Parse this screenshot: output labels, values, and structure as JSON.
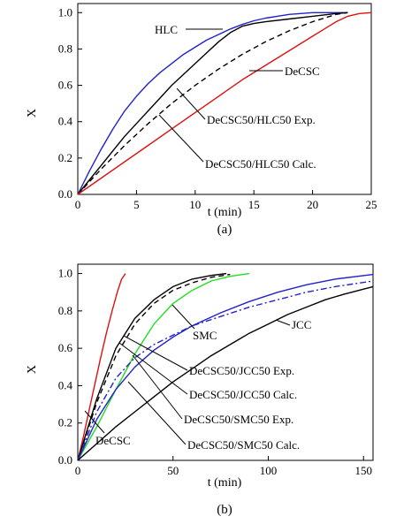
{
  "chart_data": [
    {
      "type": "line",
      "panel_label": "(a)",
      "xlabel": "t (min)",
      "ylabel": "X",
      "xlim": [
        0,
        25
      ],
      "ylim": [
        0,
        1.05
      ],
      "xticks": [
        0,
        5,
        10,
        15,
        20,
        25
      ],
      "yticks": [
        0.0,
        0.2,
        0.4,
        0.6,
        0.8,
        1.0
      ],
      "tick_labels_x": [
        "0",
        "5",
        "10",
        "15",
        "20",
        "25"
      ],
      "tick_labels_y": [
        "0.0",
        "0.2",
        "0.4",
        "0.6",
        "0.8",
        "1.0"
      ],
      "grid": false,
      "series": [
        {
          "name": "HLC",
          "color": "#2222cc",
          "dash": "solid",
          "x": [
            0,
            1,
            2,
            3,
            4,
            5,
            6,
            7,
            8,
            9,
            10,
            11,
            12,
            13,
            14,
            15,
            16,
            17,
            18,
            19,
            20,
            21,
            22,
            23
          ],
          "y": [
            0,
            0.13,
            0.25,
            0.36,
            0.46,
            0.54,
            0.61,
            0.67,
            0.72,
            0.77,
            0.81,
            0.85,
            0.88,
            0.91,
            0.935,
            0.955,
            0.97,
            0.98,
            0.99,
            0.995,
            1.0,
            1.0,
            1.0,
            1.0
          ]
        },
        {
          "name": "DeCSC50/HLC50 Exp.",
          "color": "#000000",
          "dash": "solid",
          "x": [
            0,
            1,
            2,
            3,
            4,
            5,
            6,
            7,
            8,
            9,
            10,
            11,
            12,
            13,
            14,
            15,
            16,
            18,
            20,
            22,
            23
          ],
          "y": [
            0,
            0.08,
            0.16,
            0.24,
            0.32,
            0.39,
            0.46,
            0.53,
            0.6,
            0.66,
            0.72,
            0.78,
            0.84,
            0.89,
            0.925,
            0.94,
            0.95,
            0.965,
            0.98,
            0.995,
            1.0
          ]
        },
        {
          "name": "DeCSC50/HLC50 Calc.",
          "color": "#000000",
          "dash": "dashed",
          "x": [
            0,
            2,
            4,
            6,
            8,
            10,
            12,
            14,
            16,
            18,
            20,
            22,
            23
          ],
          "y": [
            0,
            0.14,
            0.27,
            0.39,
            0.5,
            0.6,
            0.69,
            0.77,
            0.84,
            0.9,
            0.95,
            0.99,
            1.0
          ]
        },
        {
          "name": "DeCSC",
          "color": "#dd1111",
          "dash": "solid",
          "x": [
            0,
            2,
            4,
            6,
            8,
            10,
            12,
            14,
            16,
            18,
            20,
            21,
            22,
            23,
            24,
            25
          ],
          "y": [
            0,
            0.09,
            0.18,
            0.27,
            0.36,
            0.45,
            0.54,
            0.63,
            0.71,
            0.79,
            0.87,
            0.91,
            0.95,
            0.98,
            0.995,
            1.0
          ]
        }
      ],
      "annotations": [
        "HLC",
        "DeCSC",
        "DeCSC50/HLC50 Exp.",
        "DeCSC50/HLC50 Calc."
      ]
    },
    {
      "type": "line",
      "panel_label": "(b)",
      "xlabel": "t (min)",
      "ylabel": "X",
      "xlim": [
        0,
        155
      ],
      "ylim": [
        0,
        1.05
      ],
      "xticks": [
        0,
        50,
        100,
        150
      ],
      "yticks": [
        0.0,
        0.2,
        0.4,
        0.6,
        0.8,
        1.0
      ],
      "tick_labels_x": [
        "0",
        "50",
        "100",
        "150"
      ],
      "tick_labels_y": [
        "0.0",
        "0.2",
        "0.4",
        "0.6",
        "0.8",
        "1.0"
      ],
      "grid": false,
      "series": [
        {
          "name": "DeCSC",
          "color": "#dd1111",
          "dash": "solid",
          "x": [
            0,
            3,
            6,
            9,
            12,
            15,
            18,
            21,
            23,
            25
          ],
          "y": [
            0,
            0.13,
            0.27,
            0.41,
            0.55,
            0.68,
            0.8,
            0.91,
            0.97,
            1.0
          ]
        },
        {
          "name": "DeCSC50/JCC50 Exp.",
          "color": "#000000",
          "dash": "solid",
          "x": [
            0,
            10,
            20,
            30,
            40,
            50,
            60,
            70,
            78
          ],
          "y": [
            0,
            0.33,
            0.6,
            0.76,
            0.86,
            0.93,
            0.97,
            0.99,
            1.0
          ]
        },
        {
          "name": "DeCSC50/JCC50 Calc.",
          "color": "#000000",
          "dash": "dashed",
          "x": [
            0,
            10,
            20,
            30,
            40,
            50,
            60,
            70,
            80
          ],
          "y": [
            0,
            0.31,
            0.56,
            0.73,
            0.84,
            0.91,
            0.95,
            0.98,
            0.995
          ]
        },
        {
          "name": "SMC",
          "color": "#22dd22",
          "dash": "solid",
          "x": [
            0,
            10,
            20,
            30,
            40,
            50,
            60,
            70,
            80,
            90
          ],
          "y": [
            0,
            0.18,
            0.38,
            0.57,
            0.73,
            0.84,
            0.91,
            0.96,
            0.985,
            1.0
          ]
        },
        {
          "name": "DeCSC50/SMC50 Exp.",
          "color": "#2222cc",
          "dash": "dashdot",
          "x": [
            0,
            10,
            20,
            30,
            40,
            50,
            60,
            75,
            90,
            105,
            120,
            135,
            155
          ],
          "y": [
            0,
            0.26,
            0.44,
            0.55,
            0.62,
            0.67,
            0.72,
            0.77,
            0.82,
            0.86,
            0.9,
            0.93,
            0.96
          ]
        },
        {
          "name": "DeCSC50/SMC50 Calc.",
          "color": "#2222cc",
          "dash": "solid",
          "x": [
            0,
            10,
            20,
            30,
            40,
            50,
            60,
            75,
            90,
            105,
            120,
            135,
            155
          ],
          "y": [
            0,
            0.22,
            0.38,
            0.5,
            0.59,
            0.66,
            0.72,
            0.79,
            0.85,
            0.9,
            0.94,
            0.97,
            0.995
          ]
        },
        {
          "name": "JCC",
          "color": "#000000",
          "dash": "solid",
          "x": [
            0,
            10,
            20,
            30,
            40,
            50,
            60,
            70,
            80,
            90,
            100,
            110,
            120,
            130,
            140,
            155
          ],
          "y": [
            0,
            0.09,
            0.18,
            0.26,
            0.34,
            0.42,
            0.49,
            0.56,
            0.62,
            0.68,
            0.73,
            0.78,
            0.82,
            0.86,
            0.89,
            0.93
          ]
        }
      ],
      "annotations": [
        "SMC",
        "JCC",
        "DeCSC50/JCC50 Exp.",
        "DeCSC50/JCC50 Calc.",
        "DeCSC50/SMC50 Exp.",
        "DeCSC50/SMC50 Calc.",
        "DeCSC"
      ]
    }
  ]
}
